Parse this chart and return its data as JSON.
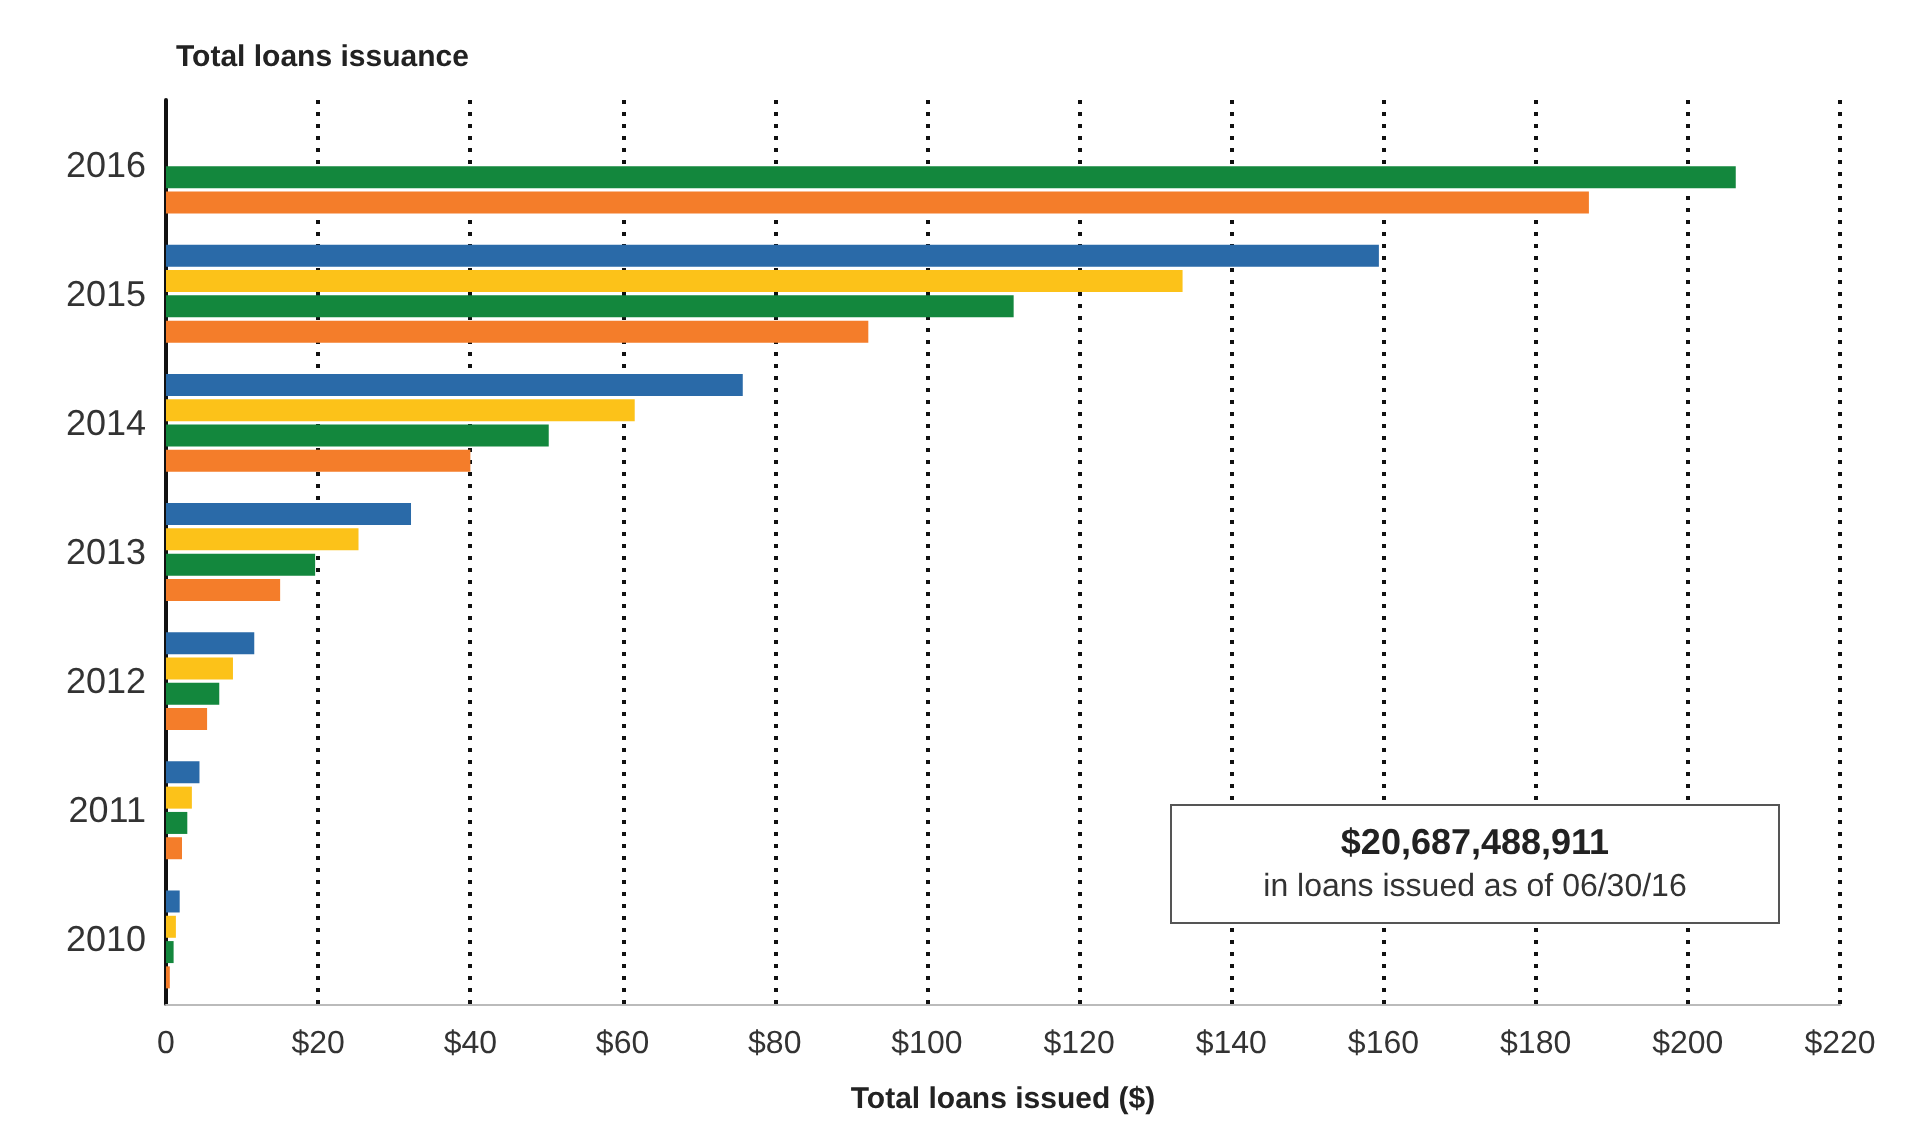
{
  "chart_data": {
    "type": "bar",
    "orientation": "horizontal",
    "title": "Total loans issuance",
    "xlabel": "Total loans issued ($)",
    "categories": [
      "2016",
      "2015",
      "2014",
      "2013",
      "2012",
      "2011",
      "2010"
    ],
    "series": [
      {
        "color": "#2a6aa8",
        "values": [
          null,
          159.4,
          75.8,
          32.2,
          11.6,
          4.4,
          1.8
        ]
      },
      {
        "color": "#fcc219",
        "values": [
          null,
          133.6,
          61.6,
          25.3,
          8.8,
          3.4,
          1.3
        ]
      },
      {
        "color": "#13873d",
        "values": [
          206.3,
          111.4,
          50.3,
          19.6,
          7,
          2.8,
          1
        ]
      },
      {
        "color": "#f47d2a",
        "values": [
          187,
          92.3,
          40,
          15,
          5.4,
          2.1,
          0.5
        ]
      }
    ],
    "xlim": [
      0,
      220
    ],
    "xticks": [
      0,
      {
        "value": 20,
        "label": "$20"
      },
      {
        "value": 40,
        "label": "$40"
      },
      {
        "value": 60,
        "label": "$60"
      },
      {
        "value": 80,
        "label": "$80"
      },
      {
        "value": 100,
        "label": "$100"
      },
      {
        "value": 120,
        "label": "$120"
      },
      {
        "value": 140,
        "label": "$140"
      },
      {
        "value": 160,
        "label": "$160"
      },
      {
        "value": 180,
        "label": "$180"
      },
      {
        "value": 200,
        "label": "$200"
      },
      {
        "value": 220,
        "label": "$220"
      }
    ],
    "grid": "x",
    "annotations": [
      "$20,687,488,911",
      "in loans issued as of 06/30/16"
    ]
  }
}
